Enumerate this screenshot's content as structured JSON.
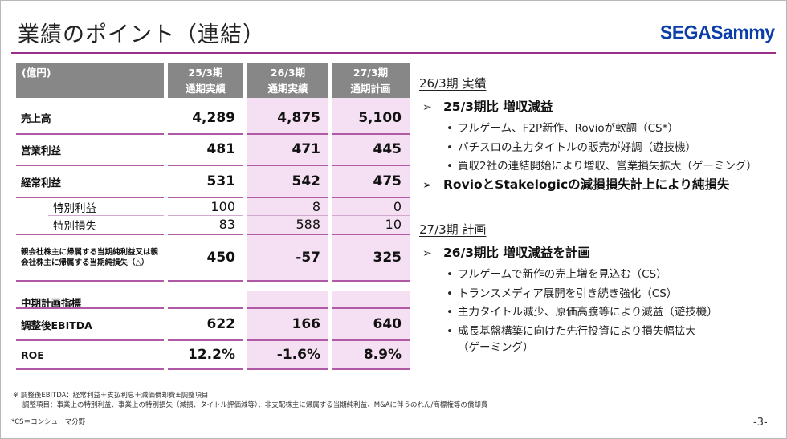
{
  "title": "業績のポイント（連結）",
  "logo": "SEGASammy",
  "table": {
    "unit_label": "(億円)",
    "columns": [
      {
        "line1": "25/3期",
        "line2": "通期実績"
      },
      {
        "line1": "26/3期",
        "line2": "通期実績"
      },
      {
        "line1": "27/3期",
        "line2": "通期計画"
      }
    ],
    "rows": [
      {
        "label": "売上高",
        "values": [
          "4,289",
          "4,875",
          "5,100"
        ]
      },
      {
        "label": "営業利益",
        "values": [
          "481",
          "471",
          "445"
        ]
      },
      {
        "label": "経常利益",
        "values": [
          "531",
          "542",
          "475"
        ]
      },
      {
        "label": "特別利益",
        "values": [
          "100",
          "8",
          "0"
        ]
      },
      {
        "label": "特別損失",
        "values": [
          "83",
          "588",
          "10"
        ]
      },
      {
        "label": "親会社株主に帰属する当期純利益又は親会社株主に帰属する当期純損失（△）",
        "values": [
          "450",
          "-57",
          "325"
        ]
      }
    ],
    "section_title": "中期計画指標",
    "kpi_rows": [
      {
        "label": "調整後EBITDA",
        "values": [
          "622",
          "166",
          "640"
        ]
      },
      {
        "label": "ROE",
        "values": [
          "12.2%",
          "-1.6%",
          "8.9%"
        ]
      }
    ]
  },
  "right": {
    "h1": "26/3期 実績",
    "h1_points": [
      {
        "text": "25/3期比 増収減益",
        "subs": [
          "フルゲーム、F2P新作、Rovioが軟調（CS*）",
          "パチスロの主力タイトルの販売が好調（遊技機）",
          "買収2社の連結開始により増収、営業損失拡大（ゲーミング）"
        ]
      },
      {
        "text": "RovioとStakelogicの減損損失計上により純損失",
        "subs": []
      }
    ],
    "h2": "27/3期 計画",
    "h2_points": [
      {
        "text": "26/3期比 増収減益を計画",
        "subs": [
          "フルゲームで新作の売上増を見込む（CS）",
          "トランスメディア展開を引き続き強化（CS）",
          "主力タイトル減少、原価高騰等により減益（遊技機）",
          "成長基盤構築に向けた先行投資により損失幅拡大",
          "（ゲーミング）"
        ]
      }
    ]
  },
  "footnotes": {
    "f1": "※ 調整後EBITDA：経常利益＋支払利息＋減価償却費±調整項目",
    "f2": "調整項目：事業上の特別利益、事業上の特別損失（減損、タイトル評価減等）、非支配株主に帰属する当期純利益、M&Aに伴うのれん/商標権等の償却費",
    "f3": "*CS＝コンシューマ分野"
  },
  "page_number": "-3-",
  "colors": {
    "accent": "#9a2f8a",
    "header_gray": "#878787",
    "highlight": "#f5dff2",
    "logo_blue": "#0b3ea8"
  }
}
